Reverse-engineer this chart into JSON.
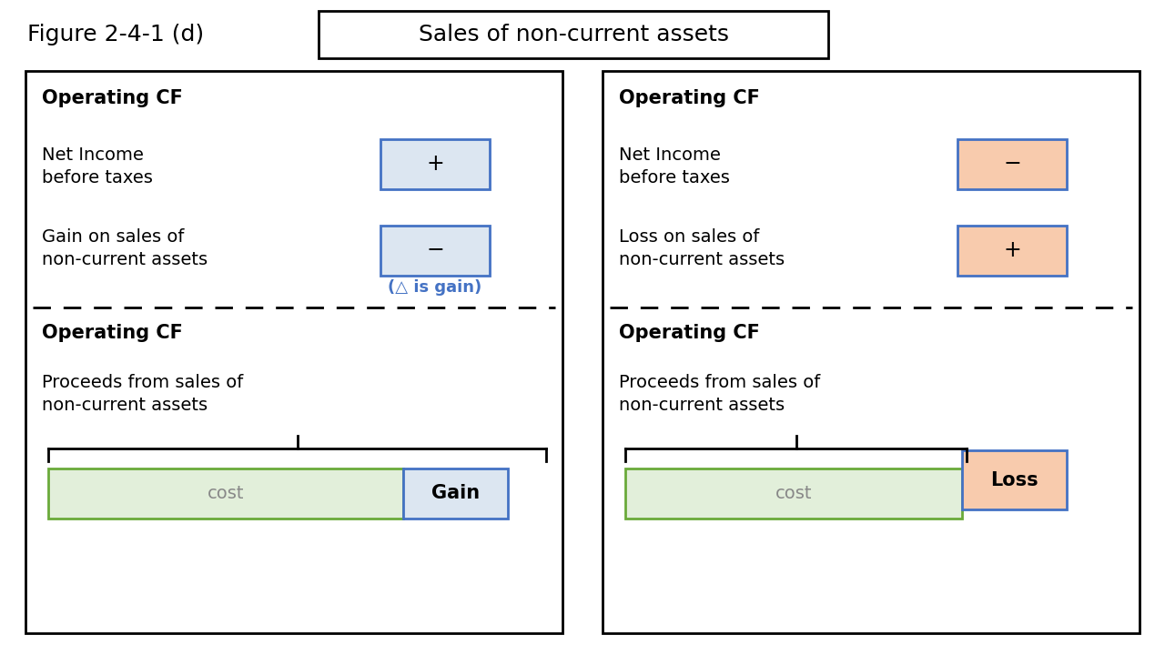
{
  "bg": "#ffffff",
  "blue_border": "#4472c4",
  "blue_fill": "#dce6f1",
  "orange_fill": "#f8cbad",
  "green_fill": "#e2efda",
  "green_border": "#6aaa3a",
  "title_label": "Figure 2-4-1 (d)",
  "title_box_text": "Sales of non-current assets",
  "left": {
    "op_cf1": "Operating CF",
    "row1_label": "Net Income\nbefore taxes",
    "row1_sign": "+",
    "row1_fill": "#dce6f1",
    "row2_label": "Gain on sales of\nnon-current assets",
    "row2_sign": "−",
    "row2_fill": "#dce6f1",
    "note": "(△ is gain)",
    "op_cf2": "Operating CF",
    "proceeds": "Proceeds from sales of\nnon-current assets",
    "cost_label": "cost",
    "gain_label": "Gain"
  },
  "right": {
    "op_cf1": "Operating CF",
    "row1_label": "Net Income\nbefore taxes",
    "row1_sign": "−",
    "row1_fill": "#f8cbad",
    "row2_label": "Loss on sales of\nnon-current assets",
    "row2_sign": "+",
    "row2_fill": "#f8cbad",
    "op_cf2": "Operating CF",
    "proceeds": "Proceeds from sales of\nnon-current assets",
    "cost_label": "cost",
    "loss_label": "Loss"
  }
}
